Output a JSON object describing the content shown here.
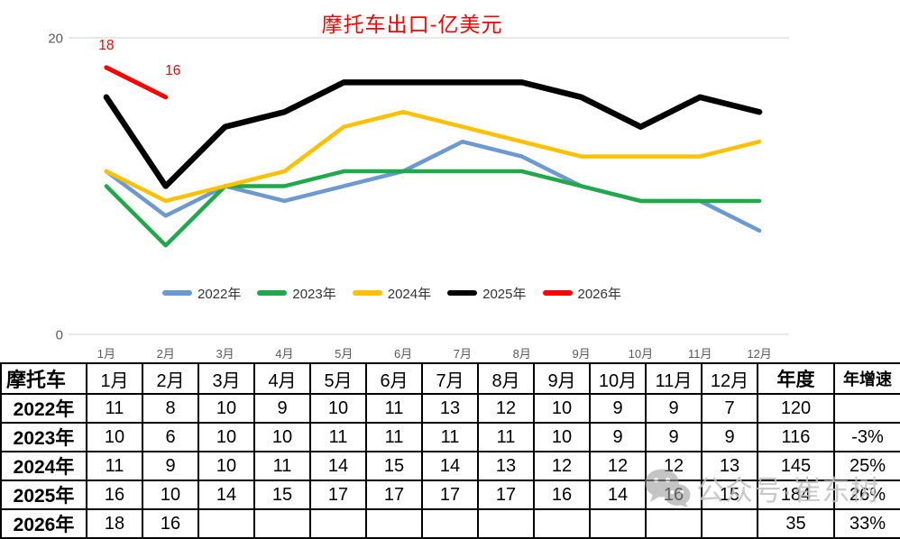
{
  "title": "摩托车出口-亿美元",
  "colors": {
    "title": "#FF0000",
    "axis_text": "#595959",
    "gridline": "#D9D9D9",
    "table_border": "#000000",
    "watermark_gray": "#9D9D9D",
    "series_2022": "#6C99D0",
    "series_2023": "#21A84A",
    "series_2024": "#FFC000",
    "series_2025": "#000000",
    "series_2026": "#FF0000"
  },
  "chart_data": {
    "type": "line",
    "title": "摩托车出口-亿美元",
    "xlabel": "",
    "ylabel": "",
    "ylim": [
      0,
      20
    ],
    "y_ticks": [
      {
        "value": 20,
        "label": "20"
      },
      {
        "value": 0,
        "label": "0"
      }
    ],
    "categories": [
      "1月",
      "2月",
      "3月",
      "4月",
      "5月",
      "6月",
      "7月",
      "8月",
      "9月",
      "10月",
      "11月",
      "12月"
    ],
    "grid": "horizontal gridline at 20 and baseline at 0 only",
    "legend_position": "bottom-center",
    "series": [
      {
        "name": "2022年",
        "color": "#6C99D0",
        "values": [
          11,
          8,
          10,
          9,
          10,
          11,
          13,
          12,
          10,
          9,
          9,
          7
        ]
      },
      {
        "name": "2023年",
        "color": "#21A84A",
        "values": [
          10,
          6,
          10,
          10,
          11,
          11,
          11,
          11,
          10,
          9,
          9,
          9
        ]
      },
      {
        "name": "2024年",
        "color": "#FFC000",
        "values": [
          11,
          9,
          10,
          11,
          14,
          15,
          14,
          13,
          12,
          12,
          12,
          13
        ]
      },
      {
        "name": "2025年",
        "color": "#000000",
        "values": [
          16,
          10,
          14,
          15,
          17,
          17,
          17,
          17,
          16,
          14,
          16,
          15
        ]
      },
      {
        "name": "2026年",
        "color": "#FF0000",
        "values": [
          18,
          16
        ],
        "data_labels": [
          "18",
          "16"
        ]
      }
    ]
  },
  "table": {
    "corner_label": "摩托车",
    "month_headers": [
      "1月",
      "2月",
      "3月",
      "4月",
      "5月",
      "6月",
      "7月",
      "8月",
      "9月",
      "10月",
      "11月",
      "12月"
    ],
    "annual_header": "年度",
    "growth_header": "年增速",
    "rows": [
      {
        "label": "2022年",
        "months": [
          "11",
          "8",
          "10",
          "9",
          "10",
          "11",
          "13",
          "12",
          "10",
          "9",
          "9",
          "7"
        ],
        "annual": "120",
        "growth": ""
      },
      {
        "label": "2023年",
        "months": [
          "10",
          "6",
          "10",
          "10",
          "11",
          "11",
          "11",
          "11",
          "10",
          "9",
          "9",
          "9"
        ],
        "annual": "116",
        "growth": "-3%"
      },
      {
        "label": "2024年",
        "months": [
          "11",
          "9",
          "10",
          "11",
          "14",
          "15",
          "14",
          "13",
          "12",
          "12",
          "12",
          "13"
        ],
        "annual": "145",
        "growth": "25%"
      },
      {
        "label": "2025年",
        "months": [
          "16",
          "10",
          "14",
          "15",
          "17",
          "17",
          "17",
          "17",
          "16",
          "14",
          "16",
          "15"
        ],
        "annual": "184",
        "growth": "26%"
      },
      {
        "label": "2026年",
        "months": [
          "18",
          "16",
          "",
          "",
          "",
          "",
          "",
          "",
          "",
          "",
          "",
          ""
        ],
        "annual": "35",
        "growth": "33%"
      }
    ]
  },
  "watermark": {
    "icon": "wechat-icon",
    "text": "公众号·崔东树"
  }
}
